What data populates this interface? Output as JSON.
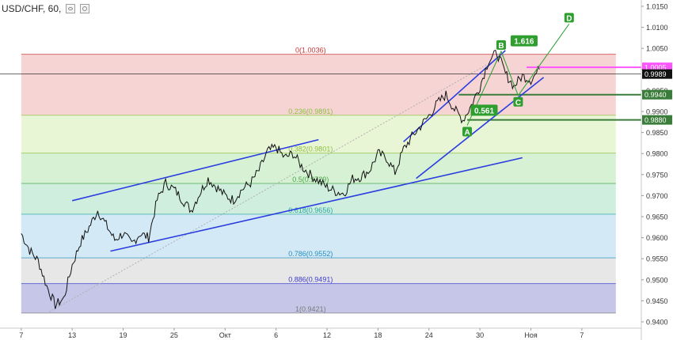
{
  "header": {
    "symbol": "USD/CHF, 60,",
    "icons": [
      "eye-icon",
      "gear-icon"
    ]
  },
  "colors": {
    "channel": "#2b3de0",
    "harmonic": "#2e9e2e",
    "price": "#111111",
    "fib_labels": [
      "#9a9a9a",
      "#cc3333",
      "#8cbf3f",
      "#8cbf3f",
      "#4aa64a",
      "#2aa6a6",
      "#2a8fbf",
      "#3a3acc",
      "#7a7a7a"
    ],
    "fib_bands": [
      "#f6d4d4",
      "#e9f6d6",
      "#d6f1d3",
      "#cfeede",
      "#d3e9f5",
      "#e7e7e7",
      "#c6c6e8"
    ],
    "price_tags": [
      "#ff55ff",
      "#111111",
      "#3a7d3a",
      "#3a7d3a"
    ]
  },
  "chart_data": {
    "type": "line",
    "title": "USD/CHF, 60,",
    "y_axis_position": "right",
    "grid": false,
    "ylim": [
      0.9385,
      1.0165
    ],
    "y_ticks": [
      "1.0150",
      "1.0100",
      "1.0050",
      "1.0000",
      "0.9950",
      "0.9900",
      "0.9850",
      "0.9800",
      "0.9750",
      "0.9700",
      "0.9650",
      "0.9600",
      "0.9550",
      "0.9500",
      "0.9450",
      "0.9400"
    ],
    "x_ticks": [
      {
        "label": "7",
        "i": 0
      },
      {
        "label": "13",
        "i": 6
      },
      {
        "label": "19",
        "i": 12
      },
      {
        "label": "25",
        "i": 18
      },
      {
        "label": "Окт",
        "i": 24
      },
      {
        "label": "6",
        "i": 30
      },
      {
        "label": "12",
        "i": 36
      },
      {
        "label": "18",
        "i": 42
      },
      {
        "label": "24",
        "i": 48
      },
      {
        "label": "30",
        "i": 54
      },
      {
        "label": "Ноя",
        "i": 60
      },
      {
        "label": "7",
        "i": 66
      }
    ],
    "x_range": [
      -2.5,
      73
    ],
    "fib_levels": [
      {
        "ratio": 0,
        "price": 1.0036,
        "label": "0(1.0036)"
      },
      {
        "ratio": 0.236,
        "price": 0.9891,
        "label": "0.236(0.9891)"
      },
      {
        "ratio": 0.382,
        "price": 0.9801,
        "label": "0.382(0.9801)"
      },
      {
        "ratio": 0.5,
        "price": 0.9729,
        "label": "0.5(0.9729)"
      },
      {
        "ratio": 0.618,
        "price": 0.9656,
        "label": "0.618(0.9656)"
      },
      {
        "ratio": 0.786,
        "price": 0.9552,
        "label": "0.786(0.9552)"
      },
      {
        "ratio": 0.886,
        "price": 0.9491,
        "label": "0.886(0.9491)"
      },
      {
        "ratio": 1,
        "price": 0.9421,
        "label": "1(0.9421)"
      }
    ],
    "fib_x_range": [
      0,
      70
    ],
    "price_tags": [
      {
        "label": "1.0005",
        "value": 1.0005
      },
      {
        "label": "0.9989",
        "value": 0.9989
      },
      {
        "label": "0.9940",
        "value": 0.994
      },
      {
        "label": "0.9880",
        "value": 0.988
      }
    ],
    "reference_lines": [
      {
        "value": 1.0005,
        "x_from": 59.5
      },
      {
        "value": 0.9989,
        "x_from": -2.5
      },
      {
        "value": 0.994,
        "x_from": 51.5
      },
      {
        "value": 0.988,
        "x_from": 52.5
      }
    ],
    "channels": [
      {
        "name": "",
        "points": [
          [
            6,
            0.9688
          ],
          [
            35,
            0.9833
          ]
        ]
      },
      {
        "name": "",
        "points": [
          [
            10.5,
            0.9568
          ],
          [
            59,
            0.979
          ]
        ]
      },
      {
        "name": "",
        "points": [
          [
            45,
            0.9828
          ],
          [
            57,
            1.0045
          ]
        ]
      },
      {
        "name": "",
        "points": [
          [
            46.5,
            0.9741
          ],
          [
            61.5,
            0.9981
          ]
        ]
      }
    ],
    "harmonic_pattern": {
      "points": [
        {
          "label": "A",
          "i": 52.5,
          "value": 0.9867
        },
        {
          "label": "B",
          "i": 56.5,
          "value": 1.0043
        },
        {
          "label": "C",
          "i": 58.5,
          "value": 0.9938
        },
        {
          "label": "D",
          "i": 64.5,
          "value": 1.0108
        }
      ],
      "ratios": [
        {
          "label": "0.561",
          "i": 54.5,
          "value": 0.9903
        },
        {
          "label": "1.616",
          "i": 59.2,
          "value": 1.0068
        }
      ]
    },
    "projection_line": [
      [
        3,
        0.942
      ],
      [
        57,
        1.0036
      ]
    ],
    "price_series": {
      "name": "",
      "values": [
        0.961,
        0.957,
        0.9545,
        0.9485,
        0.944,
        0.9455,
        0.9535,
        0.959,
        0.9625,
        0.9665,
        0.963,
        0.9595,
        0.961,
        0.9585,
        0.961,
        0.96,
        0.969,
        0.973,
        0.9715,
        0.969,
        0.9665,
        0.9705,
        0.974,
        0.972,
        0.97,
        0.969,
        0.9715,
        0.973,
        0.976,
        0.9805,
        0.9815,
        0.979,
        0.98,
        0.977,
        0.975,
        0.9735,
        0.972,
        0.971,
        0.9705,
        0.974,
        0.9745,
        0.976,
        0.98,
        0.979,
        0.9755,
        0.981,
        0.984,
        0.9865,
        0.989,
        0.992,
        0.994,
        0.9905,
        0.988,
        0.9915,
        0.996,
        1.002,
        1.004,
        0.999,
        0.996,
        0.9985,
        0.9975,
        1.0
      ]
    }
  }
}
